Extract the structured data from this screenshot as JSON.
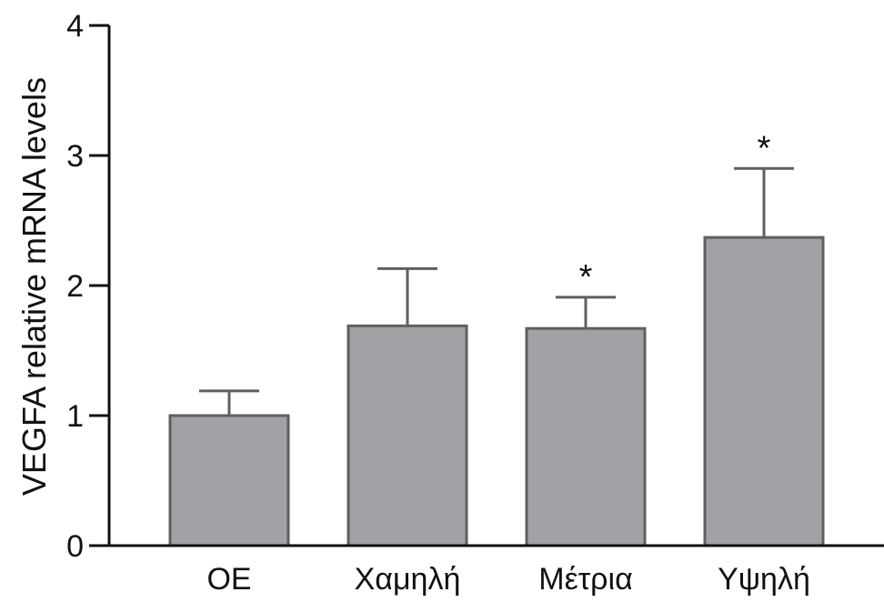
{
  "chart_data": {
    "type": "bar",
    "categories": [
      "OE",
      "Χαμηλή",
      "Μέτρια",
      "Υψηλή"
    ],
    "values": [
      1.0,
      1.69,
      1.67,
      2.37
    ],
    "error_upper": [
      1.19,
      2.13,
      1.91,
      2.9
    ],
    "significance": [
      "",
      "",
      "*",
      "*"
    ],
    "ylabel": "VEGFA relative mRNA levels",
    "xlabel": "",
    "ylim": [
      0,
      4
    ],
    "yticks": [
      0,
      1,
      2,
      3,
      4
    ],
    "grid": false,
    "legend": "none",
    "colors": {
      "bar_fill": "#a2a1a6",
      "bar_stroke": "#5f5f5f",
      "axis": "#111111"
    }
  }
}
